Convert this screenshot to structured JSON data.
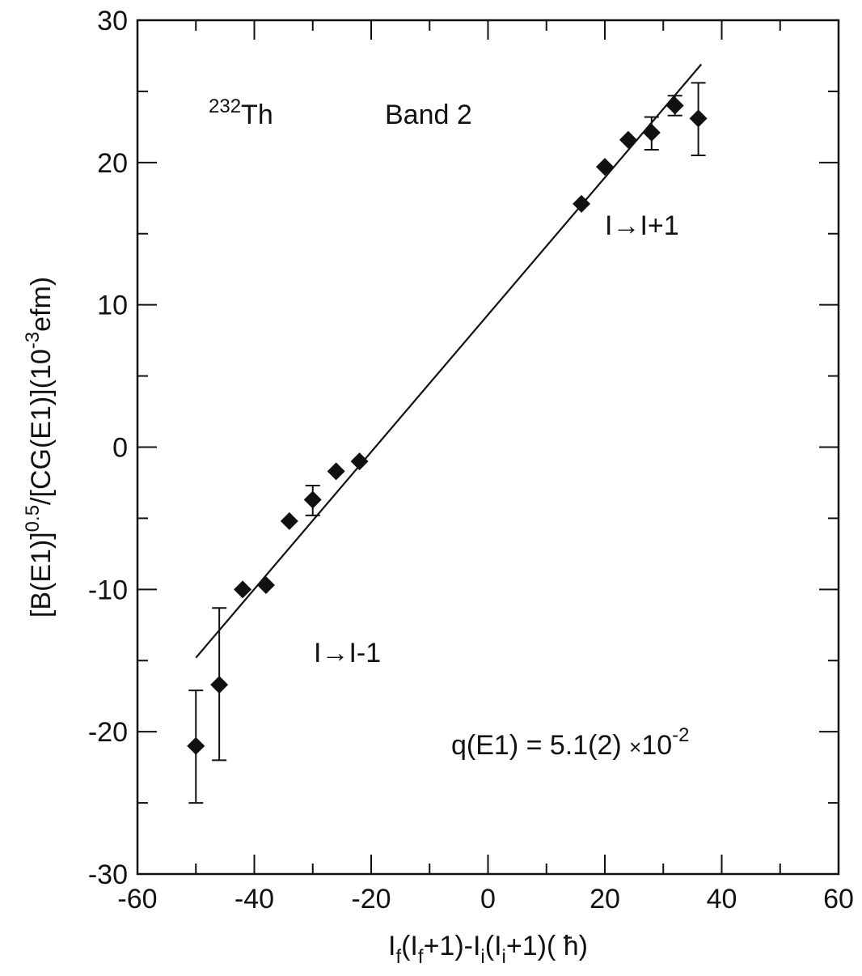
{
  "chart_data": {
    "type": "scatter",
    "xlim": [
      -60,
      60
    ],
    "ylim": [
      -30,
      30
    ],
    "x_ticks": [
      -60,
      -40,
      -20,
      0,
      20,
      40,
      60
    ],
    "y_ticks": [
      -30,
      -20,
      -10,
      0,
      10,
      20,
      30
    ],
    "xlabel": {
      "parts": [
        {
          "t": "I",
          "s": ""
        },
        {
          "t": "f",
          "s": "sub"
        },
        {
          "t": "(I",
          "s": ""
        },
        {
          "t": "f",
          "s": "sub"
        },
        {
          "t": "+1)-I",
          "s": ""
        },
        {
          "t": "i",
          "s": "sub"
        },
        {
          "t": "(I",
          "s": ""
        },
        {
          "t": "i",
          "s": "sub"
        },
        {
          "t": "+1)( ",
          "s": ""
        },
        {
          "t": "ħ",
          "s": ""
        },
        {
          "t": ")",
          "s": ""
        }
      ]
    },
    "ylabel": {
      "parts": [
        {
          "t": "[B(E1)]",
          "s": ""
        },
        {
          "t": "0.5",
          "s": "sup"
        },
        {
          "t": "/[CG(E1)](10",
          "s": ""
        },
        {
          "t": "-3",
          "s": "sup"
        },
        {
          "t": "efm)",
          "s": ""
        }
      ]
    },
    "annotations": {
      "nucleus_mass": "232",
      "nucleus_symbol": "Th",
      "band": "Band 2",
      "upper_transition": "I→I+1",
      "lower_transition": "I→I-1",
      "q_text": "q(E1) = 5.1(2) ",
      "q_mult": "×",
      "q_base": "10",
      "q_exp": "-2"
    },
    "series": [
      {
        "marker": "diamond",
        "points": [
          {
            "x": -50,
            "y": -21.0,
            "yerr_low": 4.0,
            "yerr_high": 3.9
          },
          {
            "x": -46,
            "y": -16.7,
            "yerr_low": 5.3,
            "yerr_high": 5.4
          },
          {
            "x": -42,
            "y": -10.0
          },
          {
            "x": -38,
            "y": -9.7
          },
          {
            "x": -34,
            "y": -5.2
          },
          {
            "x": -30,
            "y": -3.7,
            "yerr_low": 1.1,
            "yerr_high": 1.0
          },
          {
            "x": -26,
            "y": -1.7
          },
          {
            "x": -22,
            "y": -1.0
          },
          {
            "x": 16,
            "y": 17.1
          },
          {
            "x": 20,
            "y": 19.7
          },
          {
            "x": 24,
            "y": 21.6
          },
          {
            "x": 28,
            "y": 22.1,
            "yerr_low": 1.2,
            "yerr_high": 1.1
          },
          {
            "x": 32,
            "y": 24.0,
            "yerr_low": 0.7,
            "yerr_high": 0.7
          },
          {
            "x": 36,
            "y": 23.1,
            "yerr_low": 2.6,
            "yerr_high": 2.5
          }
        ]
      }
    ],
    "fit_line": {
      "x": [
        -50,
        36.5
      ],
      "y": [
        -14.8,
        26.9
      ]
    },
    "colors": {
      "marks": "#111111"
    }
  }
}
